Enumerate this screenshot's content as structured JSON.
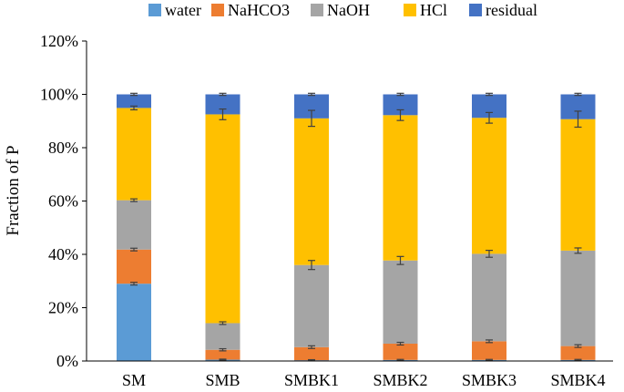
{
  "chart_data": {
    "type": "stacked-bar",
    "title": "",
    "xlabel": "",
    "ylabel": "Fraction of P",
    "ylim": [
      0,
      120
    ],
    "ytick_values": [
      0,
      20,
      40,
      60,
      80,
      100,
      120
    ],
    "ytick_labels": [
      "0%",
      "20%",
      "40%",
      "60%",
      "80%",
      "100%",
      "120%"
    ],
    "grid": false,
    "legend_position": "top",
    "categories": [
      "SM",
      "SMB",
      "SMBK1",
      "SMBK2",
      "SMBK3",
      "SMBK4"
    ],
    "series": [
      {
        "name": "water",
        "color": "#5B9BD5",
        "values": [
          29.0,
          0.5,
          0.3,
          0.4,
          0.4,
          0.4
        ],
        "errors": [
          0.5,
          0.2,
          0.2,
          0.2,
          0.2,
          0.2
        ]
      },
      {
        "name": "NaHCO3",
        "color": "#ED7D31",
        "values": [
          12.8,
          3.7,
          4.9,
          6.1,
          7.0,
          5.2
        ],
        "errors": [
          0.5,
          0.4,
          0.5,
          0.5,
          0.5,
          0.5
        ]
      },
      {
        "name": "NaOH",
        "color": "#A5A5A5",
        "values": [
          18.5,
          10.0,
          30.8,
          31.2,
          32.8,
          35.8
        ],
        "errors": [
          0.5,
          0.5,
          1.7,
          1.5,
          1.3,
          1.0
        ]
      },
      {
        "name": "HCl",
        "color": "#FFC000",
        "values": [
          34.6,
          78.3,
          55.0,
          54.5,
          51.0,
          49.3
        ],
        "errors": [
          0.7,
          2.0,
          3.0,
          2.0,
          2.0,
          3.0
        ]
      },
      {
        "name": "residual",
        "color": "#4472C4",
        "values": [
          5.1,
          7.5,
          9.0,
          7.8,
          8.8,
          9.3
        ],
        "errors": [
          0.4,
          0.4,
          0.4,
          0.4,
          0.4,
          0.4
        ]
      }
    ]
  }
}
